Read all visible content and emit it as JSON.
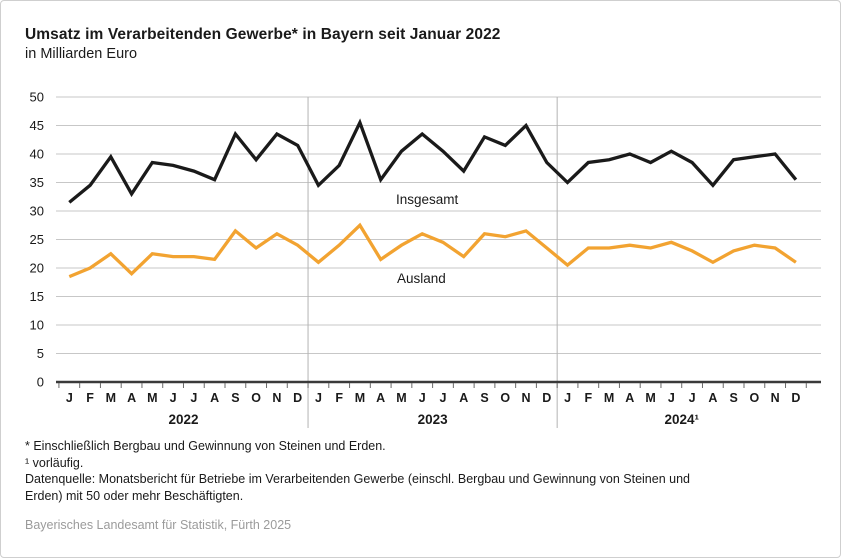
{
  "chart_data": {
    "type": "line",
    "title": "Umsatz im Verarbeitenden Gewerbe* in Bayern seit Januar 2022",
    "subtitle": "in Milliarden Euro",
    "ylim": [
      0,
      50
    ],
    "ytick_step": 5,
    "grid": true,
    "month_labels": [
      "J",
      "F",
      "M",
      "A",
      "M",
      "J",
      "J",
      "A",
      "S",
      "O",
      "N",
      "D"
    ],
    "years": [
      "2022",
      "2023",
      "2024¹"
    ],
    "series": [
      {
        "name": "Insgesamt",
        "color": "#1a1a1a",
        "values": [
          31.5,
          34.5,
          39.5,
          33,
          38.5,
          38,
          37,
          35.5,
          43.5,
          39,
          43.5,
          41.5,
          34.5,
          38,
          45.5,
          35.5,
          40.5,
          43.5,
          40.5,
          37,
          43,
          41.5,
          45,
          38.5,
          35,
          38.5,
          39,
          40,
          38.5,
          40.5,
          38.5,
          34.5,
          39,
          39.5,
          40,
          35.5
        ]
      },
      {
        "name": "Ausland",
        "color": "#f2a331",
        "values": [
          18.5,
          20,
          22.5,
          19,
          22.5,
          22,
          22,
          21.5,
          26.5,
          23.5,
          26,
          24,
          21,
          24,
          27.5,
          21.5,
          24,
          26,
          24.5,
          22,
          26,
          25.5,
          26.5,
          23.5,
          20.5,
          23.5,
          23.5,
          24,
          23.5,
          24.5,
          23,
          21,
          23,
          24,
          23.5,
          21
        ]
      }
    ]
  },
  "footnotes": {
    "line1": "* Einschließlich Bergbau und Gewinnung von Steinen und Erden.",
    "line2": "¹ vorläufig.",
    "line3a": "Datenquelle: Monatsbericht für Betriebe im Verarbeitenden Gewerbe (einschl. Bergbau und Gewinnung von Steinen und",
    "line3b": "Erden) mit 50 oder mehr Beschäftigten."
  },
  "source": "Bayerisches Landesamt für Statistik, Fürth 2025"
}
